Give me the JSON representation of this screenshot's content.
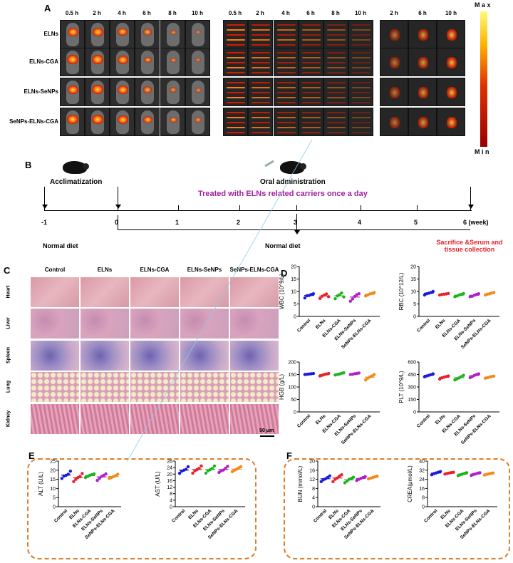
{
  "panels": {
    "A": "A",
    "B": "B",
    "C": "C",
    "D": "D",
    "E": "E",
    "F": "F"
  },
  "panelA": {
    "times_left": [
      "0.5 h",
      "2 h",
      "4 h",
      "6 h",
      "8 h",
      "10 h"
    ],
    "times_mid": [
      "0.5 h",
      "2 h",
      "4 h",
      "6 h",
      "8 h",
      "10 h"
    ],
    "times_right": [
      "2 h",
      "6 h",
      "10 h"
    ],
    "groups": [
      "ELNs",
      "ELNs-CGA",
      "ELNs-SeNPs",
      "SeNPs-ELNs-CGA"
    ],
    "colorbar": {
      "max": "M a x",
      "min": "M i n",
      "colors": [
        "#fffb7a",
        "#ffb000",
        "#e03000",
        "#9a0000"
      ]
    }
  },
  "panelB": {
    "acclimatization": "Acclimatization",
    "oral": "Oral administration",
    "treated": "Treated with ELNs related carriers once a day",
    "ticks": [
      "-1",
      "0",
      "1",
      "2",
      "3",
      "4",
      "5",
      "6 (week)"
    ],
    "normal_diet_1": "Normal diet",
    "normal_diet_2": "Normal diet",
    "sacrifice": "Sacrifice &Serum and tissue collection"
  },
  "panelC": {
    "columns": [
      "Control",
      "ELNs",
      "ELNs-CGA",
      "ELNs-SeNPs",
      "SeNPs-ELNs-CGA"
    ],
    "rows": [
      "Heart",
      "Liver",
      "Spleen",
      "Lung",
      "Kidney"
    ],
    "scale": "50 μm"
  },
  "chart_data": [
    {
      "type": "scatter",
      "panel": "D",
      "ylabel": "WBC (10^9/L)",
      "ylim": [
        0,
        20
      ],
      "yticks": [
        0,
        5,
        10,
        15,
        20
      ],
      "categories": [
        "Control",
        "ELNs",
        "ELNs-CGA",
        "ELNs-SeNPs",
        "SeNPs-ELNs-CGA"
      ],
      "series": [
        [
          7.4,
          8.3,
          8.4,
          8.8,
          9.1
        ],
        [
          7.2,
          8.1,
          8.6,
          9.0,
          7.9
        ],
        [
          7.1,
          8.2,
          8.7,
          9.4,
          7.8
        ],
        [
          6.1,
          7.0,
          8.0,
          8.7,
          9.1
        ],
        [
          8.2,
          8.6,
          9.0,
          9.2,
          9.6
        ]
      ]
    },
    {
      "type": "scatter",
      "panel": "D",
      "ylabel": "RBC (10^12/L)",
      "ylim": [
        0,
        20
      ],
      "yticks": [
        0,
        5,
        10,
        15,
        20
      ],
      "categories": [
        "Control",
        "ELNs",
        "ELNs-CGA",
        "ELNs-SeNPs",
        "SeNPs-ELNs-CGA"
      ],
      "series": [
        [
          8.6,
          9.1,
          9.3,
          9.6,
          10.0
        ],
        [
          8.6,
          8.8,
          8.9,
          9.0,
          9.2
        ],
        [
          7.9,
          8.2,
          8.6,
          8.8,
          9.2
        ],
        [
          7.9,
          8.1,
          8.5,
          8.8,
          9.1
        ],
        [
          8.6,
          8.9,
          9.1,
          9.4,
          9.6
        ]
      ]
    },
    {
      "type": "scatter",
      "panel": "D",
      "ylabel": "HGB (g/L)",
      "ylim": [
        0,
        200
      ],
      "yticks": [
        0,
        50,
        100,
        150,
        200
      ],
      "categories": [
        "Control",
        "ELNs",
        "ELNs-CGA",
        "ELNs-SeNPs",
        "SeNPs-ELNs-CGA"
      ],
      "series": [
        [
          150,
          151,
          152,
          153,
          154
        ],
        [
          144,
          147,
          150,
          152,
          154
        ],
        [
          148,
          150,
          152,
          155,
          157
        ],
        [
          150,
          151,
          153,
          154,
          156
        ],
        [
          128,
          135,
          140,
          144,
          150
        ]
      ]
    },
    {
      "type": "scatter",
      "panel": "D",
      "ylabel": "PLT (10^9/L)",
      "ylim": [
        0,
        600
      ],
      "yticks": [
        0,
        150,
        300,
        450,
        600
      ],
      "categories": [
        "Control",
        "ELNs",
        "ELNs-CGA",
        "ELNs-SeNPs",
        "SeNPs-ELNs-CGA"
      ],
      "series": [
        [
          422,
          432,
          440,
          448,
          458
        ],
        [
          395,
          410,
          418,
          425,
          432
        ],
        [
          385,
          398,
          410,
          425,
          440
        ],
        [
          412,
          425,
          440,
          450,
          458
        ],
        [
          405,
          412,
          420,
          426,
          430
        ]
      ]
    },
    {
      "type": "scatter",
      "panel": "E",
      "ylabel": "ALT (U/L)",
      "ylim": [
        0,
        25
      ],
      "yticks": [
        0,
        5,
        10,
        15,
        20,
        25
      ],
      "categories": [
        "Control",
        "ELNs",
        "ELNs-CGA",
        "ELNs-SeNPs",
        "SeNPs-ELNs-CGA"
      ],
      "series": [
        [
          15.5,
          16.8,
          17.2,
          17.8,
          19.5
        ],
        [
          13.8,
          15.0,
          16.0,
          16.6,
          18.2
        ],
        [
          16.0,
          16.6,
          17.2,
          17.6,
          18.0
        ],
        [
          14.4,
          15.5,
          16.6,
          17.2,
          18.0
        ],
        [
          15.5,
          16.0,
          16.5,
          17.0,
          17.8
        ]
      ]
    },
    {
      "type": "scatter",
      "panel": "E",
      "ylabel": "AST (U/L)",
      "ylim": [
        0,
        28
      ],
      "yticks": [
        0,
        4,
        8,
        12,
        16,
        20,
        24,
        28
      ],
      "categories": [
        "Control",
        "ELNs",
        "ELNs-CGA",
        "ELNs-SeNPs",
        "SeNPs-ELNs-CGA"
      ],
      "series": [
        [
          20.5,
          21.8,
          22.4,
          23.0,
          24.6
        ],
        [
          20.6,
          22.0,
          22.8,
          23.5,
          25.0
        ],
        [
          20.6,
          22.0,
          22.8,
          23.5,
          25.0
        ],
        [
          21.0,
          22.0,
          22.5,
          23.6,
          24.8
        ],
        [
          21.5,
          22.4,
          23.0,
          23.8,
          24.6
        ]
      ]
    },
    {
      "type": "scatter",
      "panel": "F",
      "ylabel": "BUN (mmol/L)",
      "ylim": [
        0,
        20
      ],
      "yticks": [
        0,
        4,
        8,
        12,
        16,
        20
      ],
      "categories": [
        "Control",
        "ELNs",
        "ELNs-CGA",
        "ELNs-SeNPs",
        "SeNPs-ELNs-CGA"
      ],
      "series": [
        [
          11.0,
          11.8,
          12.2,
          12.8,
          13.5
        ],
        [
          11.0,
          12.0,
          12.6,
          13.4,
          14.0
        ],
        [
          10.5,
          11.2,
          12.0,
          12.4,
          12.9
        ],
        [
          11.5,
          12.0,
          12.4,
          12.8,
          13.2
        ],
        [
          12.2,
          12.5,
          12.8,
          13.1,
          13.4
        ]
      ]
    },
    {
      "type": "scatter",
      "panel": "F",
      "ylabel": "CREA(μmol/L)",
      "ylim": [
        0,
        40
      ],
      "yticks": [
        0,
        8,
        16,
        24,
        32,
        40
      ],
      "categories": [
        "Control",
        "ELNs",
        "ELNs-CGA",
        "ELNs-SeNPs",
        "SeNPs-ELNs-CGA"
      ],
      "series": [
        [
          28.0,
          29.0,
          29.6,
          30.2,
          30.8
        ],
        [
          28.6,
          29.2,
          29.5,
          29.9,
          30.2
        ],
        [
          27.2,
          28.0,
          28.6,
          29.2,
          29.8
        ],
        [
          27.4,
          28.2,
          28.8,
          29.4,
          29.8
        ],
        [
          27.8,
          28.4,
          28.8,
          29.2,
          29.6
        ]
      ]
    }
  ],
  "point_colors": [
    "#1a1adc",
    "#e8202a",
    "#1db31d",
    "#b020c8",
    "#f08a1a"
  ]
}
